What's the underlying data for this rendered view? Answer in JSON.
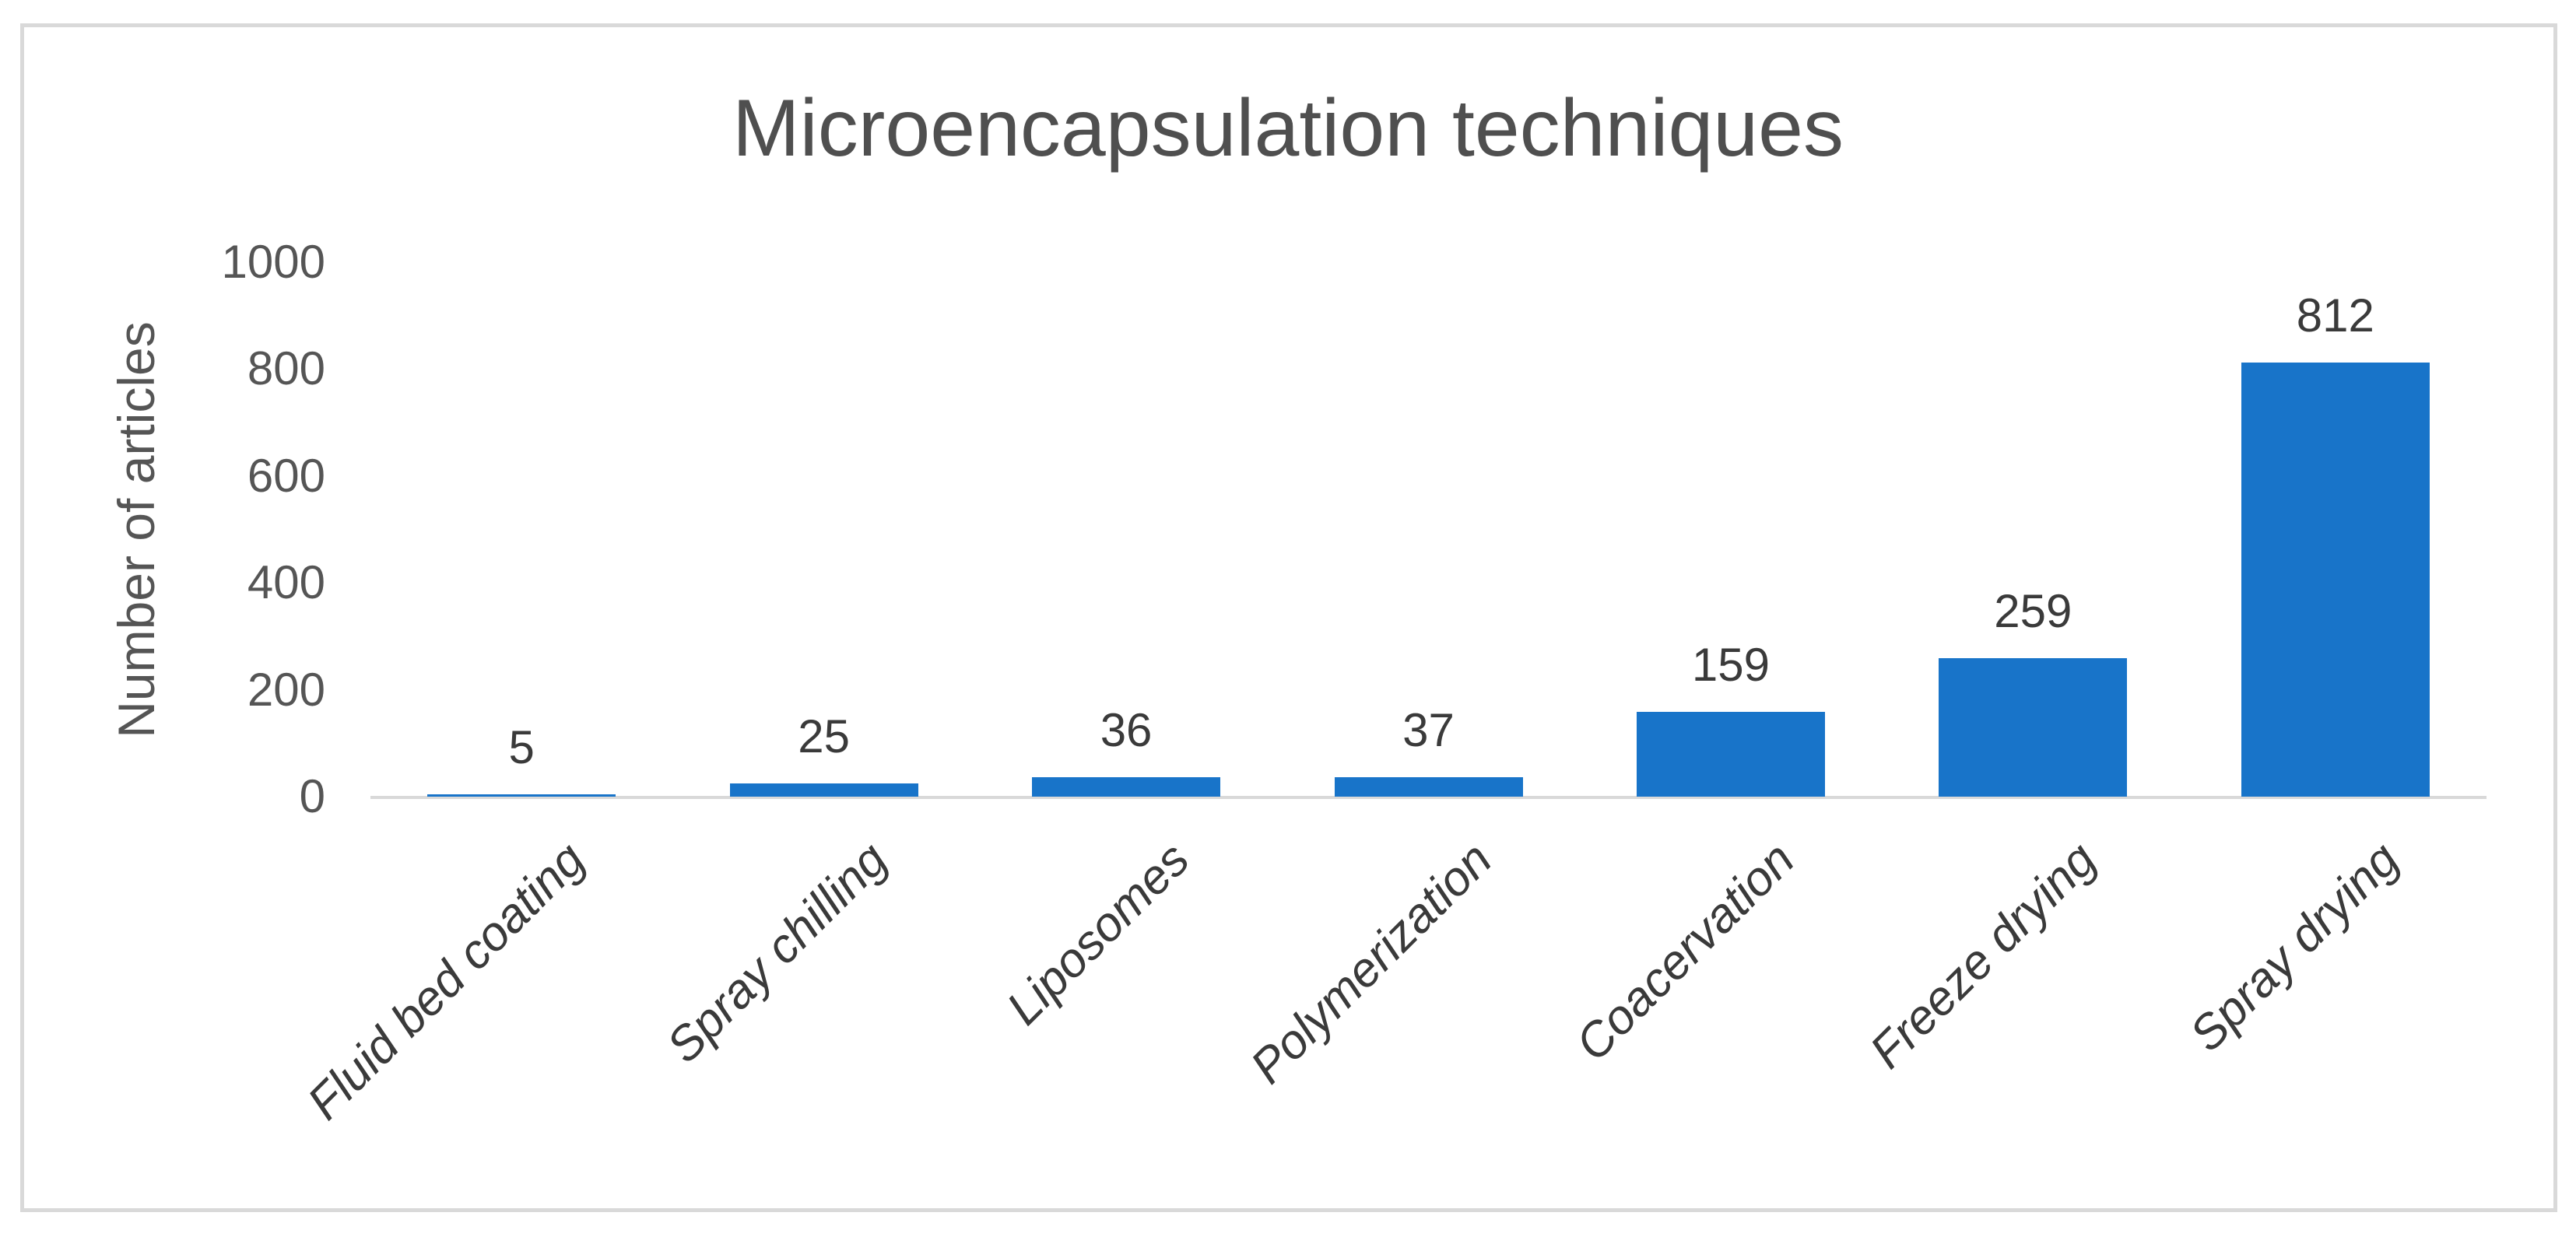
{
  "chart_data": {
    "type": "bar",
    "title": "Microencapsulation techniques",
    "ylabel": "Number of articles",
    "xlabel": "",
    "categories": [
      "Fluid bed coating",
      "Spray chilling",
      "Liposomes",
      "Polymerization",
      "Coacervation",
      "Freeze drying",
      "Spray drying"
    ],
    "values": [
      5,
      25,
      36,
      37,
      159,
      259,
      812
    ],
    "data_labels": [
      "5",
      "25",
      "36",
      "37",
      "159",
      "259",
      "812"
    ],
    "yticks": [
      1000,
      800,
      600,
      400,
      200,
      0
    ],
    "ylim": [
      0,
      1000
    ],
    "grid": "off",
    "legend": "none",
    "bar_orientation": "vertical",
    "category_label_style": "italic, rotated 45deg",
    "colors": {
      "bar": "#1874C9",
      "axis_line": "#D9D9D9",
      "frame_border": "#D9D9D9",
      "title_text": "#4F4F4F",
      "tick_text": "#555555",
      "label_text": "#3A3A3A"
    }
  }
}
